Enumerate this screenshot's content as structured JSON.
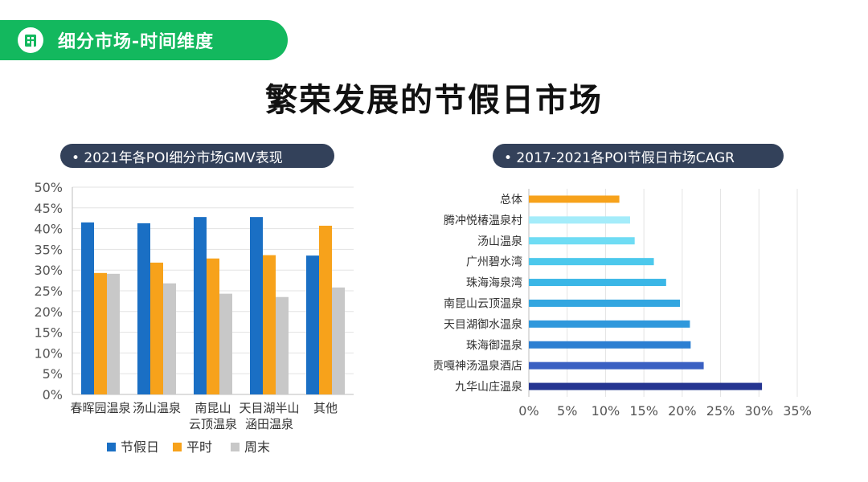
{
  "header": {
    "tag_label": "细分市场-时间维度",
    "title": "繁荣发展的节假日市场"
  },
  "colors": {
    "tag_bg": "#13b85e",
    "pill_bg": "#33415a"
  },
  "chart_data": [
    {
      "type": "bar",
      "title": "• 2021年各POI细分市场GMV表现",
      "categories": [
        "春晖园温泉",
        "汤山温泉",
        "南昆山\n云顶温泉",
        "天目湖半山\n涵田温泉",
        "其他"
      ],
      "series": [
        {
          "name": "节假日",
          "color": "#1a6fc4",
          "values": [
            41.5,
            41.3,
            42.8,
            42.8,
            33.5
          ]
        },
        {
          "name": "平时",
          "color": "#f7a21b",
          "values": [
            29.3,
            31.8,
            32.8,
            33.6,
            40.7
          ]
        },
        {
          "name": "周末",
          "color": "#c8c8c8",
          "values": [
            29.1,
            26.8,
            24.3,
            23.5,
            25.8
          ]
        }
      ],
      "yticks": [
        "0%",
        "5%",
        "10%",
        "15%",
        "20%",
        "25%",
        "30%",
        "35%",
        "40%",
        "45%",
        "50%"
      ],
      "ylim": [
        0,
        50
      ],
      "legend": "bottom"
    },
    {
      "type": "bar",
      "orientation": "horizontal",
      "title": "• 2017-2021各POI节假日市场CAGR",
      "categories": [
        "总体",
        "腾冲悦椿温泉村",
        "汤山温泉",
        "广州碧水湾",
        "珠海海泉湾",
        "南昆山云顶温泉",
        "天目湖御水温泉",
        "珠海御温泉",
        "贡嘎神汤温泉酒店",
        "九华山庄温泉"
      ],
      "values": [
        11.8,
        13.2,
        13.8,
        16.3,
        17.9,
        19.7,
        21.0,
        21.1,
        22.8,
        30.4
      ],
      "bar_colors": [
        "#f7a21b",
        "#a4ecfa",
        "#6fdcf4",
        "#4cc8ec",
        "#3ab6e6",
        "#33a6e0",
        "#2f98dc",
        "#2c7fd2",
        "#3a60c2",
        "#253591"
      ],
      "xticks": [
        "0%",
        "5%",
        "10%",
        "15%",
        "20%",
        "25%",
        "30%",
        "35%"
      ],
      "xlim": [
        0,
        35
      ]
    }
  ]
}
